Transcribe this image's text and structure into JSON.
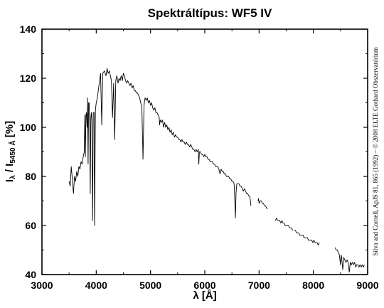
{
  "chart_data": {
    "type": "line",
    "title": "Spektráltípus: WF5 IV",
    "xlabel": "λ [Å]",
    "ylabel": {
      "main": "I",
      "sub1": "λ",
      "mid": " / I",
      "sub2": "5450 Å",
      "end": " [%]"
    },
    "credit": "Silva and Cornell, ApJS 81, 865 (1992) – © 2008 ELTE Gothard Obszervatórium",
    "xlim": [
      3000,
      9000
    ],
    "ylim": [
      40,
      140
    ],
    "xticks": [
      "3000",
      "4000",
      "5000",
      "6000",
      "7000",
      "8000",
      "9000"
    ],
    "yticks": [
      "40",
      "60",
      "80",
      "100",
      "120",
      "140"
    ],
    "grid": false,
    "series": [
      {
        "color": "#000000",
        "segments": [
          [
            [
              3500,
              78
            ],
            [
              3520,
              76
            ],
            [
              3540,
              84
            ],
            [
              3560,
              79
            ],
            [
              3580,
              73
            ],
            [
              3600,
              80
            ],
            [
              3620,
              78
            ],
            [
              3640,
              82
            ],
            [
              3660,
              80
            ],
            [
              3680,
              84
            ],
            [
              3700,
              83
            ],
            [
              3720,
              86
            ],
            [
              3740,
              85
            ],
            [
              3760,
              88
            ],
            [
              3780,
              90
            ],
            [
              3790,
              105
            ],
            [
              3800,
              88
            ],
            [
              3810,
              105
            ],
            [
              3820,
              106
            ],
            [
              3830,
              100
            ],
            [
              3840,
              112
            ],
            [
              3850,
              85
            ],
            [
              3860,
              110
            ],
            [
              3870,
              110
            ],
            [
              3880,
              100
            ],
            [
              3890,
              73
            ],
            [
              3900,
              104
            ],
            [
              3910,
              106
            ],
            [
              3920,
              102
            ],
            [
              3933,
              62
            ],
            [
              3945,
              106
            ],
            [
              3960,
              106
            ],
            [
              3970,
              60
            ],
            [
              3985,
              107
            ],
            [
              4000,
              110
            ],
            [
              4020,
              112
            ],
            [
              4050,
              117
            ],
            [
              4080,
              122
            ],
            [
              4102,
              101
            ],
            [
              4120,
              122
            ],
            [
              4150,
              123
            ],
            [
              4180,
              121
            ],
            [
              4200,
              124
            ],
            [
              4220,
              122
            ],
            [
              4240,
              123
            ],
            [
              4260,
              121
            ],
            [
              4280,
              119
            ],
            [
              4300,
              104
            ],
            [
              4320,
              118
            ],
            [
              4340,
              95
            ],
            [
              4360,
              119
            ],
            [
              4380,
              121
            ],
            [
              4400,
              118
            ],
            [
              4420,
              120
            ],
            [
              4440,
              119
            ],
            [
              4460,
              121
            ],
            [
              4480,
              119
            ],
            [
              4500,
              122
            ],
            [
              4520,
              121
            ],
            [
              4540,
              119
            ],
            [
              4560,
              118
            ],
            [
              4580,
              119
            ],
            [
              4600,
              118
            ],
            [
              4620,
              117
            ],
            [
              4640,
              118
            ],
            [
              4660,
              116
            ],
            [
              4680,
              117
            ],
            [
              4700,
              115
            ],
            [
              4720,
              115
            ],
            [
              4740,
              114
            ],
            [
              4760,
              114
            ],
            [
              4780,
              113
            ],
            [
              4800,
              112
            ],
            [
              4820,
              110
            ],
            [
              4840,
              108
            ],
            [
              4861,
              87
            ],
            [
              4880,
              109
            ],
            [
              4900,
              112
            ],
            [
              4920,
              111
            ],
            [
              4940,
              112
            ],
            [
              4960,
              110
            ],
            [
              4980,
              111
            ],
            [
              5000,
              109
            ],
            [
              5020,
              110
            ],
            [
              5040,
              108
            ],
            [
              5060,
              107
            ],
            [
              5080,
              108
            ],
            [
              5100,
              106
            ],
            [
              5120,
              106
            ],
            [
              5140,
              105
            ],
            [
              5160,
              104
            ],
            [
              5167,
              101
            ],
            [
              5180,
              103
            ],
            [
              5200,
              102
            ],
            [
              5220,
              103
            ],
            [
              5240,
              100
            ],
            [
              5260,
              102
            ],
            [
              5280,
              100
            ],
            [
              5300,
              101
            ],
            [
              5320,
              99
            ],
            [
              5340,
              100
            ],
            [
              5360,
              98
            ],
            [
              5380,
              99
            ],
            [
              5400,
              97
            ],
            [
              5420,
              98
            ],
            [
              5440,
              96
            ],
            [
              5460,
              97
            ],
            [
              5480,
              96
            ],
            [
              5500,
              96
            ],
            [
              5520,
              95
            ],
            [
              5540,
              95
            ],
            [
              5560,
              94
            ],
            [
              5580,
              95
            ],
            [
              5600,
              94
            ],
            [
              5620,
              94
            ],
            [
              5640,
              93
            ],
            [
              5660,
              94
            ],
            [
              5680,
              93
            ],
            [
              5700,
              93
            ],
            [
              5720,
              92
            ],
            [
              5740,
              93
            ],
            [
              5760,
              92
            ],
            [
              5780,
              91
            ],
            [
              5800,
              91
            ],
            [
              5820,
              90
            ],
            [
              5840,
              91
            ],
            [
              5860,
              90
            ],
            [
              5880,
              91
            ],
            [
              5890,
              85
            ],
            [
              5900,
              90
            ],
            [
              5920,
              90
            ],
            [
              5940,
              89
            ],
            [
              5960,
              89
            ],
            [
              5980,
              88
            ],
            [
              6000,
              89
            ],
            [
              6020,
              88
            ],
            [
              6040,
              88
            ],
            [
              6060,
              87
            ],
            [
              6080,
              87
            ],
            [
              6100,
              86
            ],
            [
              6120,
              86
            ],
            [
              6140,
              86
            ],
            [
              6160,
              85
            ],
            [
              6180,
              85
            ],
            [
              6200,
              84
            ],
            [
              6220,
              84
            ],
            [
              6240,
              84
            ],
            [
              6260,
              83
            ],
            [
              6280,
              81
            ],
            [
              6300,
              83
            ],
            [
              6320,
              82
            ],
            [
              6340,
              82
            ],
            [
              6360,
              81
            ],
            [
              6380,
              81
            ],
            [
              6400,
              80
            ],
            [
              6420,
              80
            ],
            [
              6440,
              80
            ],
            [
              6460,
              79
            ],
            [
              6480,
              79
            ],
            [
              6500,
              78
            ],
            [
              6520,
              78
            ],
            [
              6540,
              77
            ],
            [
              6550,
              72
            ],
            [
              6563,
              63
            ],
            [
              6575,
              73
            ],
            [
              6590,
              77
            ],
            [
              6610,
              77
            ],
            [
              6630,
              77
            ],
            [
              6650,
              76
            ],
            [
              6670,
              76
            ],
            [
              6690,
              75
            ],
            [
              6710,
              74
            ],
            [
              6730,
              75
            ],
            [
              6750,
              74
            ],
            [
              6770,
              73
            ],
            [
              6790,
              73
            ],
            [
              6810,
              72
            ],
            [
              6830,
              72
            ],
            [
              6850,
              68
            ]
          ],
          [
            [
              6980,
              70
            ],
            [
              6990,
              71
            ],
            [
              7000,
              69
            ],
            [
              7020,
              70
            ],
            [
              7040,
              70
            ],
            [
              7060,
              69
            ],
            [
              7080,
              69
            ],
            [
              7100,
              68
            ],
            [
              7120,
              68
            ],
            [
              7140,
              67
            ],
            [
              7160,
              67
            ]
          ],
          [
            [
              7300,
              62
            ],
            [
              7320,
              63
            ],
            [
              7340,
              62
            ],
            [
              7360,
              62
            ],
            [
              7380,
              62
            ],
            [
              7400,
              61
            ],
            [
              7420,
              62
            ],
            [
              7440,
              61
            ],
            [
              7460,
              61
            ],
            [
              7480,
              60
            ],
            [
              7500,
              60
            ],
            [
              7520,
              60
            ],
            [
              7540,
              60
            ],
            [
              7560,
              59
            ],
            [
              7580,
              59
            ],
            [
              7600,
              59
            ],
            [
              7620,
              58
            ]
          ],
          [
            [
              7650,
              58
            ],
            [
              7670,
              58
            ],
            [
              7690,
              57
            ],
            [
              7710,
              57
            ],
            [
              7730,
              57
            ],
            [
              7750,
              56
            ],
            [
              7770,
              56
            ],
            [
              7790,
              56
            ],
            [
              7810,
              56
            ],
            [
              7830,
              55
            ],
            [
              7850,
              55
            ],
            [
              7870,
              55
            ],
            [
              7890,
              55
            ],
            [
              7910,
              54
            ],
            [
              7930,
              54
            ],
            [
              7950,
              54
            ],
            [
              7970,
              54
            ],
            [
              7990,
              53
            ],
            [
              8010,
              54
            ],
            [
              8030,
              53
            ],
            [
              8050,
              53
            ],
            [
              8070,
              53
            ],
            [
              8090,
              52
            ],
            [
              8110,
              53
            ]
          ],
          [
            [
              8400,
              51
            ],
            [
              8420,
              50
            ],
            [
              8440,
              50
            ],
            [
              8460,
              49
            ],
            [
              8480,
              48
            ],
            [
              8498,
              44
            ],
            [
              8510,
              48
            ],
            [
              8520,
              47
            ],
            [
              8542,
              42
            ],
            [
              8560,
              47
            ],
            [
              8580,
              46
            ],
            [
              8600,
              45
            ],
            [
              8620,
              46
            ],
            [
              8640,
              45
            ],
            [
              8662,
              41
            ],
            [
              8680,
              45
            ],
            [
              8700,
              44
            ],
            [
              8720,
              45
            ],
            [
              8740,
              44
            ],
            [
              8760,
              45
            ],
            [
              8780,
              43
            ],
            [
              8800,
              44
            ],
            [
              8820,
              44
            ],
            [
              8840,
              43
            ],
            [
              8860,
              44
            ],
            [
              8880,
              43
            ],
            [
              8900,
              44
            ],
            [
              8920,
              43
            ],
            [
              8940,
              44
            ]
          ]
        ]
      }
    ]
  }
}
